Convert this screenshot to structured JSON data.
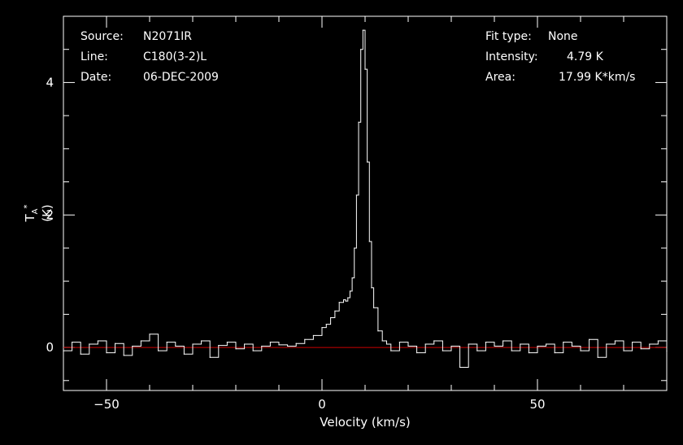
{
  "header": {
    "source_label": "Source:",
    "source_value": "N2071IR",
    "line_label": "Line:",
    "line_value": "C180(3-2)L",
    "date_label": "Date:",
    "date_value": "06-DEC-2009",
    "fit_label": "Fit type:",
    "fit_value": "None",
    "intensity_label": "Intensity:",
    "intensity_value": "4.79 K",
    "area_label": "Area:",
    "area_value": "17.99 K*km/s"
  },
  "chart_data": {
    "type": "line",
    "xlabel": "Velocity (km/s)",
    "ylabel": "T_A* (K)",
    "xlim": [
      -60,
      80
    ],
    "ylim": [
      -0.65,
      5.0
    ],
    "xticks": [
      -50,
      0,
      50
    ],
    "yticks": [
      0,
      2,
      4
    ],
    "baseline": 0,
    "colors": {
      "spectrum": "#ffffff",
      "baseline": "#cc0000",
      "axes": "#ffffff"
    },
    "series": [
      {
        "x": [
          -60,
          -58,
          -56,
          -54,
          -52,
          -50,
          -48,
          -46,
          -44,
          -42,
          -40,
          -38,
          -36,
          -34,
          -32,
          -30,
          -28,
          -26,
          -24,
          -22,
          -20,
          -18,
          -16,
          -14,
          -12,
          -10,
          -8,
          -6,
          -4,
          -2,
          0,
          1,
          2,
          3,
          4,
          5,
          5.5,
          6,
          6.5,
          7,
          7.5,
          8,
          8.5,
          9,
          9.5,
          10,
          10.5,
          11,
          11.5,
          12,
          13,
          14,
          15,
          16,
          18,
          20,
          22,
          24,
          26,
          28,
          30,
          32,
          34,
          36,
          38,
          40,
          42,
          44,
          46,
          48,
          50,
          52,
          54,
          56,
          58,
          60,
          62,
          64,
          66,
          68,
          70,
          72,
          74,
          76,
          78,
          80
        ],
        "y": [
          -0.05,
          0.08,
          -0.1,
          0.05,
          0.1,
          -0.08,
          0.06,
          -0.12,
          0.02,
          0.1,
          0.2,
          -0.05,
          0.08,
          0.02,
          -0.1,
          0.05,
          0.1,
          -0.15,
          0.03,
          0.08,
          -0.02,
          0.05,
          -0.05,
          0.02,
          0.08,
          0.04,
          0.02,
          0.06,
          0.12,
          0.18,
          0.3,
          0.35,
          0.45,
          0.55,
          0.68,
          0.72,
          0.7,
          0.75,
          0.85,
          1.05,
          1.5,
          2.3,
          3.4,
          4.5,
          4.79,
          4.2,
          2.8,
          1.6,
          0.9,
          0.6,
          0.25,
          0.1,
          0.05,
          -0.05,
          0.08,
          0.02,
          -0.08,
          0.05,
          0.1,
          -0.05,
          0.02,
          -0.3,
          0.05,
          -0.05,
          0.08,
          0.02,
          0.1,
          -0.05,
          0.05,
          -0.08,
          0.02,
          0.05,
          -0.08,
          0.08,
          0.02,
          -0.05,
          0.12,
          -0.15,
          0.05,
          0.1,
          -0.05,
          0.08,
          -0.02,
          0.05,
          0.1,
          -0.05
        ]
      }
    ]
  }
}
